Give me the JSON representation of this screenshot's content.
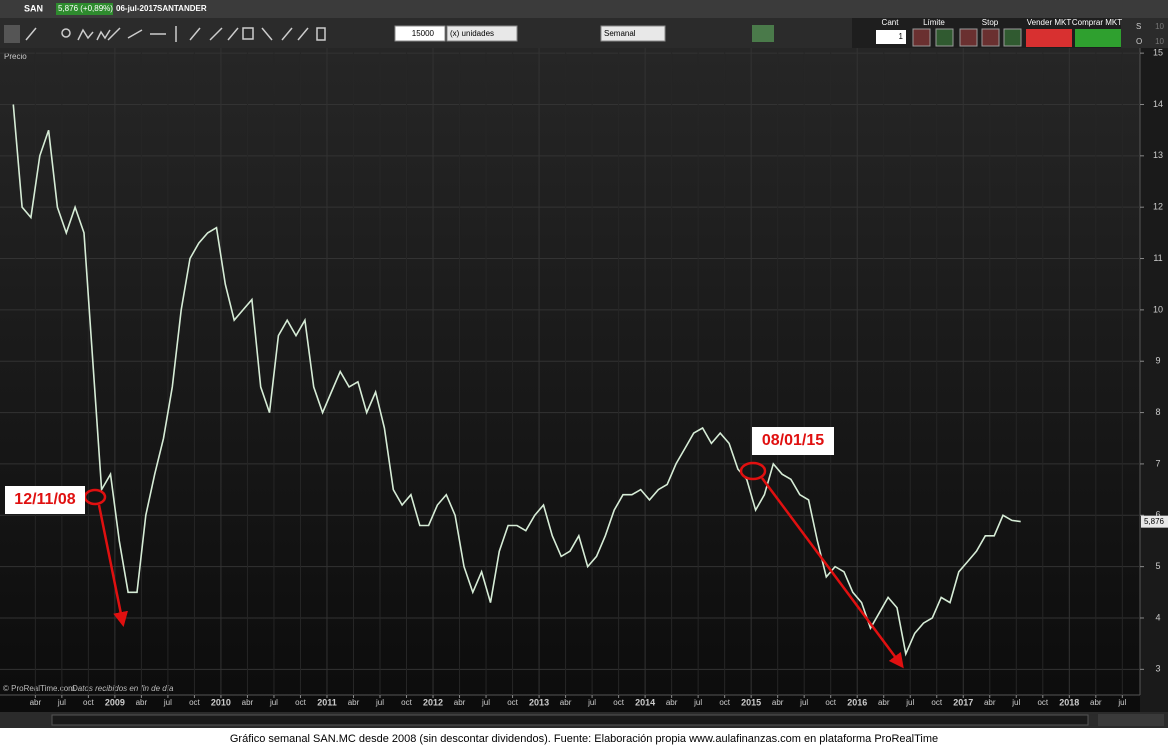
{
  "toolbar": {
    "symbol": "SAN",
    "quote": "5,876 (+0,89%)",
    "date": "06-jul-2017",
    "name": "SANTANDER",
    "quantity": "15000",
    "unit": "(x) unidades",
    "period": "Semanal",
    "cant_label": "Cant",
    "cant_value": "1",
    "limit_label": "Límite",
    "stop_label": "Stop",
    "sell": "Vender MKT",
    "buy": "Comprar MKT",
    "s_label": "S",
    "s_value": "10",
    "o_label": "O",
    "o_value": "10"
  },
  "chart_data": {
    "type": "line",
    "panel_label": "Precio",
    "credit": "© ProRealTime.com",
    "credit_note": "Datos recibidos en fin de día",
    "caption": "Gráfico semanal SAN.MC desde 2008 (sin descontar dividendos). Fuente: Elaboración propia www.aulafinanzas.com  en plataforma ProRealTime",
    "x": [
      "2008-01",
      "2008-02",
      "2008-03",
      "2008-04",
      "2008-05",
      "2008-06",
      "2008-07",
      "2008-08",
      "2008-09",
      "2008-10",
      "2008-11",
      "2008-12",
      "2009-01",
      "2009-02",
      "2009-03",
      "2009-04",
      "2009-05",
      "2009-06",
      "2009-07",
      "2009-08",
      "2009-09",
      "2009-10",
      "2009-11",
      "2009-12",
      "2010-01",
      "2010-02",
      "2010-03",
      "2010-04",
      "2010-05",
      "2010-06",
      "2010-07",
      "2010-08",
      "2010-09",
      "2010-10",
      "2010-11",
      "2010-12",
      "2011-01",
      "2011-02",
      "2011-03",
      "2011-04",
      "2011-05",
      "2011-06",
      "2011-07",
      "2011-08",
      "2011-09",
      "2011-10",
      "2011-11",
      "2011-12",
      "2012-01",
      "2012-02",
      "2012-03",
      "2012-04",
      "2012-05",
      "2012-06",
      "2012-07",
      "2012-08",
      "2012-09",
      "2012-10",
      "2012-11",
      "2012-12",
      "2013-01",
      "2013-02",
      "2013-03",
      "2013-04",
      "2013-05",
      "2013-06",
      "2013-07",
      "2013-08",
      "2013-09",
      "2013-10",
      "2013-11",
      "2013-12",
      "2014-01",
      "2014-02",
      "2014-03",
      "2014-04",
      "2014-05",
      "2014-06",
      "2014-07",
      "2014-08",
      "2014-09",
      "2014-10",
      "2014-11",
      "2014-12",
      "2015-01",
      "2015-02",
      "2015-03",
      "2015-04",
      "2015-05",
      "2015-06",
      "2015-07",
      "2015-08",
      "2015-09",
      "2015-10",
      "2015-11",
      "2015-12",
      "2016-01",
      "2016-02",
      "2016-03",
      "2016-04",
      "2016-05",
      "2016-06",
      "2016-07",
      "2016-08",
      "2016-09",
      "2016-10",
      "2016-11",
      "2016-12",
      "2017-01",
      "2017-02",
      "2017-03",
      "2017-04",
      "2017-05",
      "2017-06",
      "2017-07"
    ],
    "series": [
      {
        "name": "SANTANDER",
        "color": "#d6ecd6",
        "values": [
          14.0,
          12.0,
          11.8,
          13.0,
          13.5,
          12.0,
          11.5,
          12.0,
          11.5,
          9.0,
          6.5,
          6.8,
          5.5,
          4.5,
          4.5,
          6.0,
          6.8,
          7.5,
          8.5,
          10.0,
          11.0,
          11.3,
          11.5,
          11.6,
          10.5,
          9.8,
          10.0,
          10.2,
          8.5,
          8.0,
          9.5,
          9.8,
          9.5,
          9.8,
          8.5,
          8.0,
          8.4,
          8.8,
          8.5,
          8.6,
          8.0,
          8.4,
          7.7,
          6.5,
          6.2,
          6.4,
          5.8,
          5.8,
          6.2,
          6.4,
          6.0,
          5.0,
          4.5,
          4.9,
          4.3,
          5.3,
          5.8,
          5.8,
          5.7,
          6.0,
          6.2,
          5.6,
          5.2,
          5.3,
          5.6,
          5.0,
          5.2,
          5.6,
          6.1,
          6.4,
          6.4,
          6.5,
          6.3,
          6.5,
          6.6,
          7.0,
          7.3,
          7.6,
          7.7,
          7.4,
          7.6,
          7.4,
          6.9,
          6.7,
          6.1,
          6.4,
          7.0,
          6.8,
          6.7,
          6.4,
          6.3,
          5.5,
          4.8,
          5.0,
          4.9,
          4.5,
          4.3,
          3.8,
          4.1,
          4.4,
          4.2,
          3.3,
          3.7,
          3.9,
          4.0,
          4.4,
          4.3,
          4.9,
          5.1,
          5.3,
          5.6,
          5.6,
          6.0,
          5.9,
          5.876
        ]
      }
    ],
    "last_price": {
      "value": 5.876,
      "label": "5,876"
    },
    "xlim": [
      "2007-12",
      "2018-09"
    ],
    "xticks": [
      {
        "value": "2008-04",
        "label": "abr"
      },
      {
        "value": "2008-07",
        "label": "jul"
      },
      {
        "value": "2008-10",
        "label": "oct"
      },
      {
        "value": "2009-01",
        "label": "2009"
      },
      {
        "value": "2009-04",
        "label": "abr"
      },
      {
        "value": "2009-07",
        "label": "jul"
      },
      {
        "value": "2009-10",
        "label": "oct"
      },
      {
        "value": "2010-01",
        "label": "2010"
      },
      {
        "value": "2010-04",
        "label": "abr"
      },
      {
        "value": "2010-07",
        "label": "jul"
      },
      {
        "value": "2010-10",
        "label": "oct"
      },
      {
        "value": "2011-01",
        "label": "2011"
      },
      {
        "value": "2011-04",
        "label": "abr"
      },
      {
        "value": "2011-07",
        "label": "jul"
      },
      {
        "value": "2011-10",
        "label": "oct"
      },
      {
        "value": "2012-01",
        "label": "2012"
      },
      {
        "value": "2012-04",
        "label": "abr"
      },
      {
        "value": "2012-07",
        "label": "jul"
      },
      {
        "value": "2012-10",
        "label": "oct"
      },
      {
        "value": "2013-01",
        "label": "2013"
      },
      {
        "value": "2013-04",
        "label": "abr"
      },
      {
        "value": "2013-07",
        "label": "jul"
      },
      {
        "value": "2013-10",
        "label": "oct"
      },
      {
        "value": "2014-01",
        "label": "2014"
      },
      {
        "value": "2014-04",
        "label": "abr"
      },
      {
        "value": "2014-07",
        "label": "jul"
      },
      {
        "value": "2014-10",
        "label": "oct"
      },
      {
        "value": "2015-01",
        "label": "2015"
      },
      {
        "value": "2015-04",
        "label": "abr"
      },
      {
        "value": "2015-07",
        "label": "jul"
      },
      {
        "value": "2015-10",
        "label": "oct"
      },
      {
        "value": "2016-01",
        "label": "2016"
      },
      {
        "value": "2016-04",
        "label": "abr"
      },
      {
        "value": "2016-07",
        "label": "jul"
      },
      {
        "value": "2016-10",
        "label": "oct"
      },
      {
        "value": "2017-01",
        "label": "2017"
      },
      {
        "value": "2017-04",
        "label": "abr"
      },
      {
        "value": "2017-07",
        "label": "jul"
      },
      {
        "value": "2017-10",
        "label": "oct"
      },
      {
        "value": "2018-01",
        "label": "2018"
      },
      {
        "value": "2018-04",
        "label": "abr"
      },
      {
        "value": "2018-07",
        "label": "jul"
      }
    ],
    "ylim": [
      2.5,
      15.1
    ],
    "yticks": [
      3,
      4,
      5,
      6,
      7,
      8,
      9,
      10,
      11,
      12,
      13,
      14,
      15
    ],
    "grid": true,
    "annotations": [
      "12/11/08",
      "08/01/15"
    ]
  }
}
